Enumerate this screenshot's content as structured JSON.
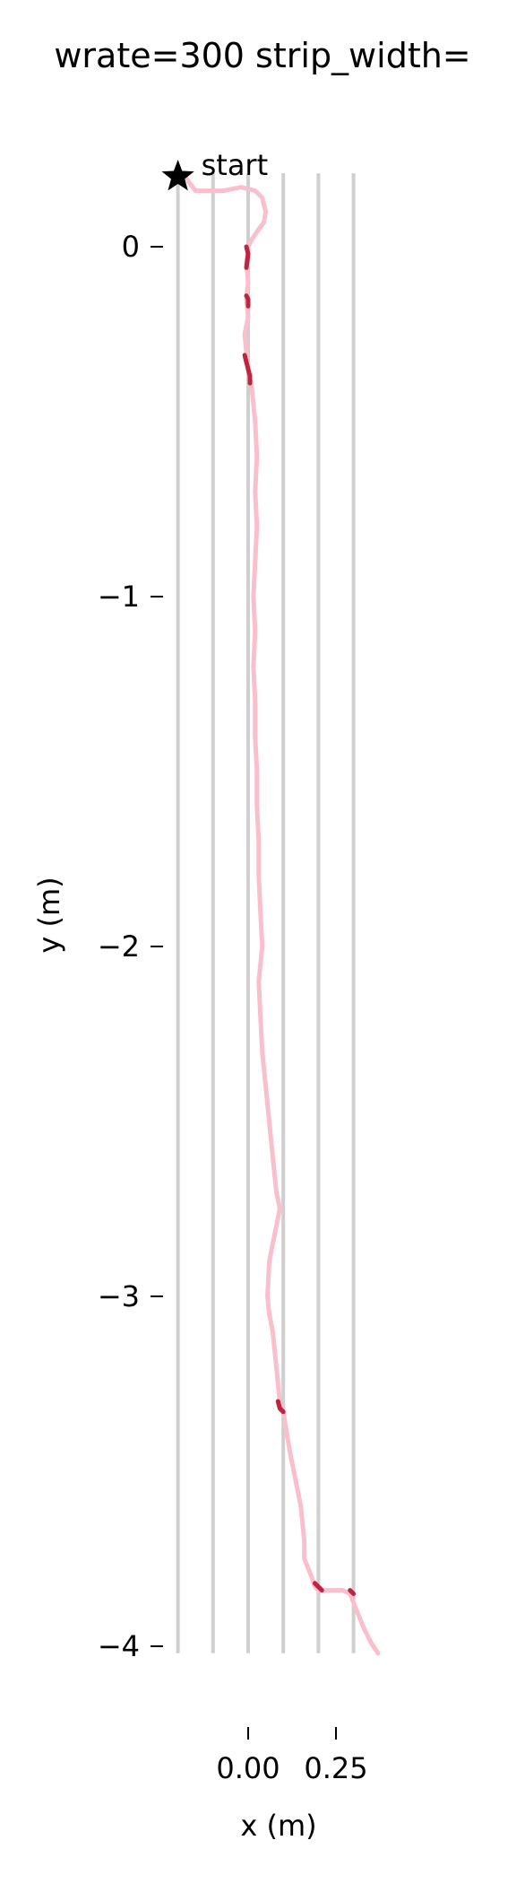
{
  "chart_data": {
    "type": "line",
    "title": "wrate=300 strip_width=",
    "xlabel": "x (m)",
    "ylabel": "y (m)",
    "xlim": [
      -0.5,
      0.42
    ],
    "ylim": [
      -4.03,
      0.23
    ],
    "x_ticks": [
      0.0,
      0.25
    ],
    "x_tick_labels": [
      "0.00",
      "0.25"
    ],
    "y_ticks": [
      0,
      -1,
      -2,
      -3,
      -4
    ],
    "y_tick_labels": [
      "0",
      "−1",
      "−2",
      "−3",
      "−4"
    ],
    "strip_lines_x": [
      -0.2,
      -0.1,
      0.0,
      0.1,
      0.2,
      0.3
    ],
    "strip_y_range": [
      -4.02,
      0.21
    ],
    "start_marker": {
      "x": -0.2,
      "y": 0.2,
      "label": "start"
    },
    "path_color": "#f9bfcb",
    "highlight_color": "#c0243f",
    "strip_color": "#cfcfcf",
    "grid": false,
    "legend": "none",
    "series": [
      {
        "x": [
          -0.18,
          -0.15,
          -0.11,
          -0.07,
          -0.02,
          0.02,
          0.04,
          0.05,
          0.045,
          0.03,
          0.01,
          0.0,
          -0.005,
          0.0,
          -0.005,
          0.0,
          -0.01,
          -0.005,
          0.0,
          0.01,
          0.02,
          0.025,
          0.02,
          0.025,
          0.02,
          0.015,
          0.02,
          0.015,
          0.02,
          0.02,
          0.025,
          0.025,
          0.03,
          0.03,
          0.035,
          0.04,
          0.03,
          0.035,
          0.04,
          0.05,
          0.06,
          0.07,
          0.08,
          0.09,
          0.08,
          0.06,
          0.055,
          0.06,
          0.07,
          0.075,
          0.08,
          0.085,
          0.09,
          0.1,
          0.12,
          0.14,
          0.15,
          0.16,
          0.16,
          0.18,
          0.19,
          0.2,
          0.22,
          0.25,
          0.27,
          0.29,
          0.31,
          0.33,
          0.35,
          0.37
        ],
        "y": [
          0.2,
          0.16,
          0.16,
          0.16,
          0.17,
          0.16,
          0.14,
          0.1,
          0.07,
          0.05,
          0.02,
          0.0,
          -0.05,
          -0.1,
          -0.15,
          -0.2,
          -0.25,
          -0.3,
          -0.35,
          -0.4,
          -0.5,
          -0.6,
          -0.7,
          -0.8,
          -0.9,
          -1.0,
          -1.1,
          -1.2,
          -1.3,
          -1.4,
          -1.5,
          -1.6,
          -1.7,
          -1.8,
          -1.9,
          -2.0,
          -2.1,
          -2.2,
          -2.3,
          -2.4,
          -2.5,
          -2.6,
          -2.7,
          -2.75,
          -2.8,
          -2.9,
          -3.0,
          -3.05,
          -3.1,
          -3.15,
          -3.2,
          -3.25,
          -3.3,
          -3.33,
          -3.45,
          -3.55,
          -3.6,
          -3.7,
          -3.75,
          -3.8,
          -3.83,
          -3.84,
          -3.84,
          -3.84,
          -3.84,
          -3.85,
          -3.9,
          -3.95,
          -3.99,
          -4.02
        ]
      }
    ],
    "highlight_segments": [
      {
        "x": [
          -0.005,
          0.0,
          -0.005
        ],
        "y": [
          -0.0,
          -0.02,
          -0.06
        ]
      },
      {
        "x": [
          -0.005,
          0.0,
          0.0
        ],
        "y": [
          -0.14,
          -0.15,
          -0.17
        ]
      },
      {
        "x": [
          -0.01,
          -0.005,
          0.0,
          0.005,
          0.005
        ],
        "y": [
          -0.31,
          -0.33,
          -0.35,
          -0.37,
          -0.39
        ]
      },
      {
        "x": [
          0.085,
          0.09,
          0.1
        ],
        "y": [
          -3.3,
          -3.32,
          -3.33
        ]
      },
      {
        "x": [
          0.19,
          0.2,
          0.21
        ],
        "y": [
          -3.82,
          -3.83,
          -3.84
        ]
      },
      {
        "x": [
          0.29,
          0.3
        ],
        "y": [
          -3.84,
          -3.85
        ]
      }
    ]
  }
}
